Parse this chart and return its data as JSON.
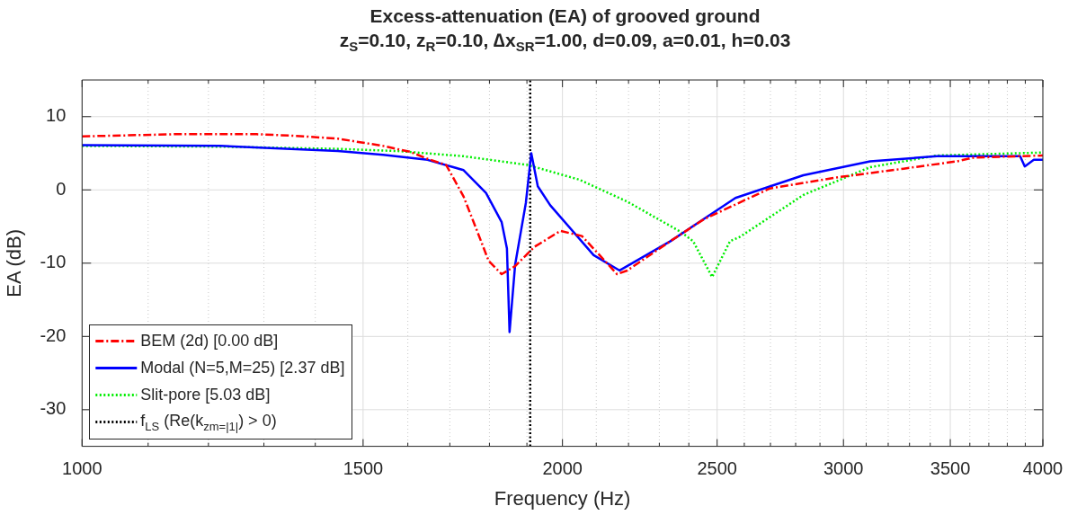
{
  "chart_data": {
    "type": "line",
    "title": "Excess-attenuation (EA) of grooved ground",
    "subtitle": "z$_{S}$=0.10, z$_{R}$=0.10, ∆x$_{SR}$=1.00, d=0.09, a=0.01, h=0.03",
    "xlabel": "Frequency (Hz)",
    "ylabel": "EA (dB)",
    "log": "x",
    "grid": true,
    "legend": "bottom left",
    "xlim": [
      1000,
      4000
    ],
    "ylim": [
      -35,
      15
    ],
    "xticks": [
      1000,
      {
        "value": 1100,
        "label": null
      },
      {
        "value": 1200,
        "label": null
      },
      {
        "value": 1300,
        "label": null
      },
      {
        "value": 1400,
        "label": null
      },
      1500,
      {
        "value": 1600,
        "label": null
      },
      {
        "value": 1700,
        "label": null
      },
      {
        "value": 1800,
        "label": null
      },
      {
        "value": 1900,
        "label": null
      },
      2000,
      {
        "value": 2100,
        "label": null
      },
      {
        "value": 2200,
        "label": null
      },
      {
        "value": 2300,
        "label": null
      },
      {
        "value": 2400,
        "label": null
      },
      2500,
      {
        "value": 2600,
        "label": null
      },
      {
        "value": 2700,
        "label": null
      },
      {
        "value": 2800,
        "label": null
      },
      {
        "value": 2900,
        "label": null
      },
      3000,
      {
        "value": 3100,
        "label": null
      },
      {
        "value": 3200,
        "label": null
      },
      {
        "value": 3300,
        "label": null
      },
      {
        "value": 3400,
        "label": null
      },
      3500,
      {
        "value": 3600,
        "label": null
      },
      {
        "value": 3700,
        "label": null
      },
      {
        "value": 3800,
        "label": null
      },
      {
        "value": 3900,
        "label": null
      },
      4000
    ],
    "yticks": [
      -30,
      -20,
      -10,
      0,
      10
    ],
    "series": [
      {
        "name": "BEM (2d) [0.00 dB]",
        "color": "#ff0000",
        "line_style": "dashed",
        "x": [
          1000,
          1144,
          1221,
          1286,
          1355,
          1446,
          1544,
          1605,
          1648,
          1691,
          1734,
          1766,
          1798,
          1832,
          1868,
          1920,
          1994,
          2057,
          2164,
          2196,
          2337,
          2453,
          2698,
          2971,
          3272,
          3534,
          3618,
          4000
        ],
        "values": [
          7.3,
          7.6,
          7.6,
          7.6,
          7.4,
          7.0,
          6.0,
          5.2,
          4.2,
          3.4,
          -0.9,
          -5.3,
          -9.7,
          -11.5,
          -10.4,
          -7.8,
          -5.6,
          -6.3,
          -11.5,
          -11,
          -7,
          -4,
          0.2,
          1.7,
          2.9,
          3.9,
          4.4,
          4.7
        ]
      },
      {
        "name": "Modal (N=5,M=25) [2.37 dB]",
        "color": "#0000ff",
        "line_style": "solid",
        "x": [
          1000,
          1221,
          1446,
          1544,
          1646,
          1734,
          1791,
          1832,
          1846,
          1853,
          1868,
          1897,
          1912,
          1930,
          1965,
          2092,
          2172,
          2337,
          2567,
          2831,
          3118,
          3434,
          3871,
          3897,
          3948,
          4000
        ],
        "values": [
          6.1,
          6.0,
          5.3,
          4.8,
          4.1,
          2.7,
          -0.4,
          -4.4,
          -8.0,
          -19.4,
          -10.2,
          -1.8,
          5.0,
          0.5,
          -2.1,
          -8.9,
          -11.0,
          -7.0,
          -1.1,
          2.0,
          3.9,
          4.6,
          4.6,
          3.2,
          4.1,
          4.1
        ]
      },
      {
        "name": "Slit-pore [5.03 dB]",
        "color": "#00ee00",
        "line_style": "dotted",
        "x": [
          1000,
          1221,
          1446,
          1578,
          1734,
          1902,
          2049,
          2196,
          2371,
          2415,
          2482,
          2547,
          2584,
          2831,
          3118,
          3434,
          4000
        ],
        "values": [
          6.0,
          5.9,
          5.6,
          5.3,
          4.6,
          3.4,
          1.4,
          -1.6,
          -5.7,
          -7.0,
          -11.9,
          -7.0,
          -6.4,
          -0.7,
          3.1,
          4.7,
          5.1
        ]
      },
      {
        "name": "f$_{LS}$ (Re(k$_{zm=|1|}$) > 0)",
        "color": "#000000",
        "line_style": "dotted",
        "x": [
          1909,
          1909
        ],
        "values": [
          -35,
          15
        ]
      }
    ]
  }
}
